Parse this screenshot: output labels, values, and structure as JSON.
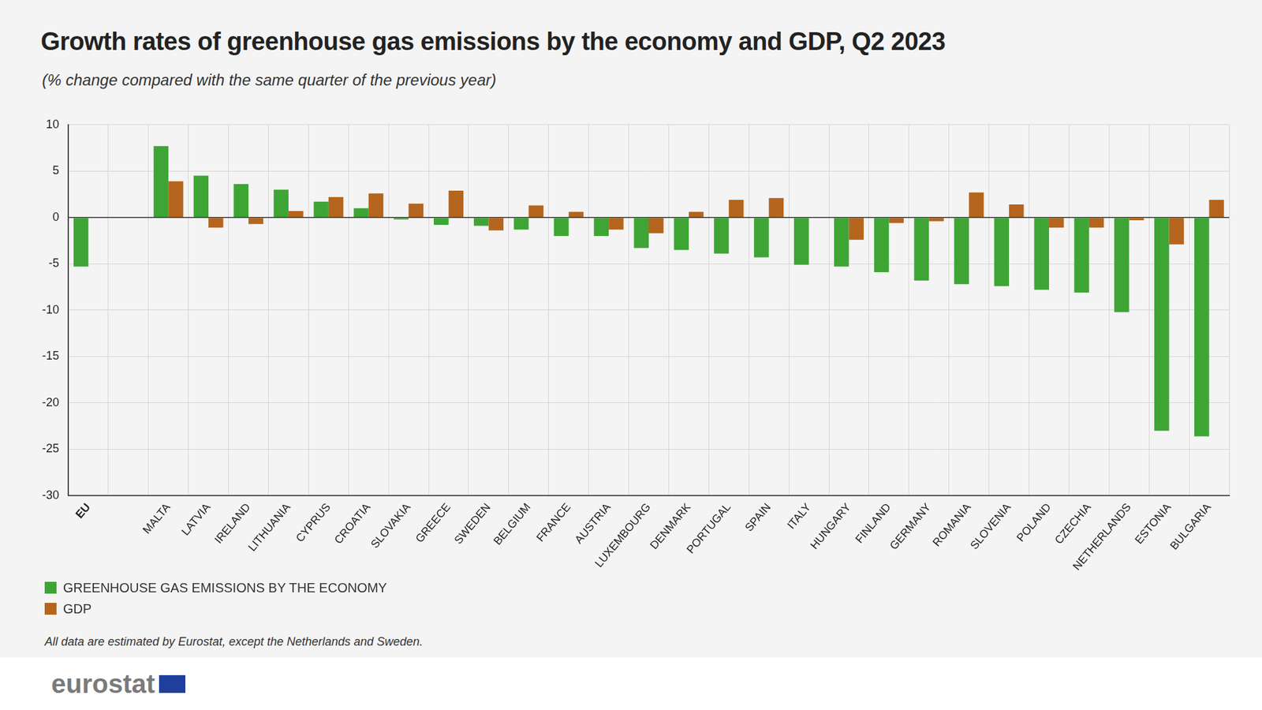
{
  "chart_data": {
    "type": "bar",
    "title": "Growth rates of greenhouse gas emissions by the economy and GDP, Q2 2023",
    "subtitle": "(% change compared with the same quarter of the previous year)",
    "categories": [
      "EU",
      null,
      "MALTA",
      "LATVIA",
      "IRELAND",
      "LITHUANIA",
      "CYPRUS",
      "CROATIA",
      "SLOVAKIA",
      "GREECE",
      "SWEDEN",
      "BELGIUM",
      "FRANCE",
      "AUSTRIA",
      "LUXEMBOURG",
      "DENMARK",
      "PORTUGAL",
      "SPAIN",
      "ITALY",
      "HUNGARY",
      "FINLAND",
      "GERMANY",
      "ROMANIA",
      "SLOVENIA",
      "POLAND",
      "CZECHIA",
      "NETHERLANDS",
      "ESTONIA",
      "BULGARIA"
    ],
    "series": [
      {
        "name": "GREENHOUSE GAS EMISSIONS BY THE ECONOMY",
        "color": "#3ea535",
        "values": [
          -5.3,
          null,
          7.7,
          4.5,
          3.6,
          3.0,
          1.7,
          1.0,
          -0.2,
          -0.8,
          -0.9,
          -1.3,
          -2.0,
          -2.0,
          -3.3,
          -3.5,
          -3.9,
          -4.3,
          -5.1,
          -5.3,
          -5.9,
          -6.8,
          -7.2,
          -7.4,
          -7.8,
          -8.1,
          -10.2,
          -23.0,
          -23.6
        ]
      },
      {
        "name": "GDP",
        "color": "#b5651d",
        "values": [
          null,
          null,
          3.9,
          -1.1,
          -0.7,
          0.7,
          2.2,
          2.6,
          1.5,
          2.9,
          -1.4,
          1.3,
          0.6,
          -1.3,
          -1.7,
          0.6,
          1.9,
          2.1,
          0.0,
          -2.4,
          -0.6,
          -0.4,
          2.7,
          1.4,
          -1.1,
          -1.1,
          -0.3,
          -2.9,
          1.9
        ]
      }
    ],
    "ylim": [
      -30,
      10
    ],
    "yticks": [
      -30,
      -25,
      -20,
      -15,
      -10,
      -5,
      0,
      5,
      10
    ],
    "grid": true,
    "legend": "bottom-left",
    "footnote": "All data are estimated by Eurostat, except the Netherlands and Sweden.",
    "source": "eurostat"
  }
}
